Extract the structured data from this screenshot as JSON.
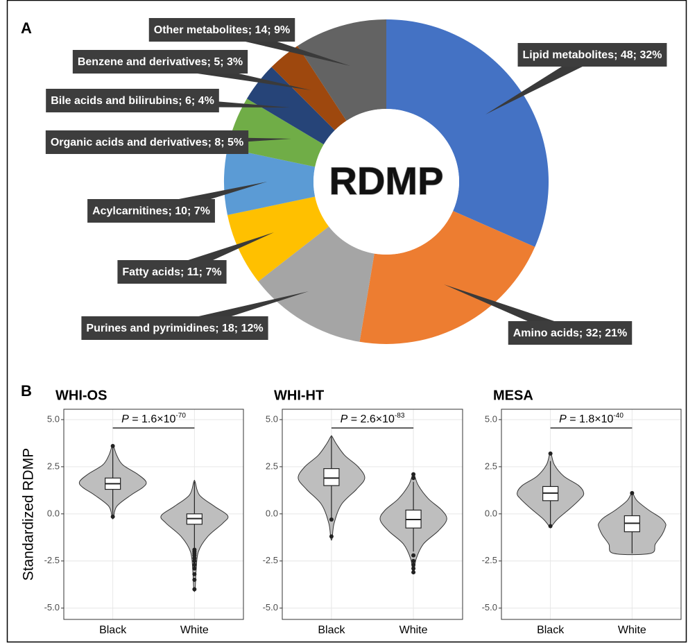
{
  "chart_data": [
    {
      "type": "donut",
      "panel": "A",
      "center_label": "RDMP",
      "categories": [
        "Lipid metabolites; 48; 32%",
        "Amino acids; 32; 21%",
        "Purines and pyrimidines; 18; 12%",
        "Fatty acids; 11; 7%",
        "Acylcarnitines; 10; 7%",
        "Organic acids and derivatives; 8; 5%",
        "Bile acids and bilirubins; 6; 4%",
        "Benzene and derivatives; 5; 3%",
        "Other metabolites; 14; 9%"
      ],
      "values": [
        48,
        32,
        18,
        11,
        10,
        8,
        6,
        5,
        14
      ],
      "colors": [
        "#4472c4",
        "#ed7d31",
        "#a5a5a5",
        "#ffc000",
        "#5b9bd5",
        "#70ad47",
        "#264478",
        "#9e480e",
        "#636363"
      ]
    },
    {
      "type": "violin",
      "panel": "B",
      "title": "WHI-OS",
      "ylabel": "Standardized RDMP",
      "annotation": [
        "P",
        " = 1.6×10",
        "-70"
      ],
      "categories": [
        "Black",
        "White"
      ],
      "color": "#bebebe",
      "ylim": [
        -5.6,
        5.55
      ],
      "yticks": [
        {
          "value": -5,
          "label": "-5.0"
        },
        {
          "value": -2.5,
          "label": "-2.5"
        },
        {
          "value": 0,
          "label": "0.0"
        },
        {
          "value": 2.5,
          "label": "2.5"
        },
        {
          "value": 5,
          "label": "5.0"
        }
      ],
      "grid": true,
      "groups": [
        {
          "box": [
            -0.1,
            1.3,
            1.6,
            1.9,
            3.5
          ],
          "outliers": [
            3.6,
            -0.15
          ],
          "density_y": [
            -0.2,
            0.4,
            1.0,
            1.4,
            1.7,
            2.1,
            2.6,
            3.1,
            3.6
          ],
          "density_width": [
            0.02,
            0.12,
            0.55,
            0.9,
            1,
            0.75,
            0.3,
            0.12,
            0.02
          ]
        },
        {
          "box": [
            -1.8,
            -0.55,
            -0.25,
            0.0,
            1.7
          ],
          "outliers": [
            -1.9,
            -2.0,
            -2.1,
            -2.2,
            -2.35,
            -2.5,
            -2.7,
            -2.9,
            -3.2,
            -3.5,
            -4.0
          ],
          "density_y": [
            -4.0,
            -3.0,
            -2.0,
            -1.2,
            -0.5,
            -0.1,
            0.4,
            1.0,
            1.7
          ],
          "density_width": [
            0.02,
            0.05,
            0.12,
            0.4,
            0.85,
            1,
            0.6,
            0.15,
            0.02
          ]
        }
      ]
    },
    {
      "type": "violin",
      "title": "WHI-HT",
      "annotation": [
        "P",
        " = 2.6×10",
        "-83"
      ],
      "categories": [
        "Black",
        "White"
      ],
      "color": "#bebebe",
      "ylim": [
        -5.6,
        5.55
      ],
      "yticks": [
        {
          "value": -5,
          "label": "-5.0"
        },
        {
          "value": -2.5,
          "label": "-2.5"
        },
        {
          "value": 0,
          "label": "0.0"
        },
        {
          "value": 2.5,
          "label": "2.5"
        },
        {
          "value": 5,
          "label": "5.0"
        }
      ],
      "grid": true,
      "groups": [
        {
          "box": [
            -0.2,
            1.5,
            1.9,
            2.4,
            4.1
          ],
          "outliers": [
            -0.3,
            -1.2
          ],
          "density_y": [
            -1.3,
            -0.5,
            0.5,
            1.3,
            1.9,
            2.5,
            3.1,
            3.7,
            4.1
          ],
          "density_width": [
            0.02,
            0.08,
            0.3,
            0.75,
            1,
            0.8,
            0.4,
            0.15,
            0.02
          ]
        },
        {
          "box": [
            -2.0,
            -0.75,
            -0.3,
            0.2,
            1.7
          ],
          "outliers": [
            1.9,
            2.1,
            -2.2,
            -2.5,
            -2.7,
            -2.9,
            -3.1
          ],
          "density_y": [
            -3.1,
            -2.4,
            -1.6,
            -0.9,
            -0.3,
            0.2,
            0.8,
            1.5,
            2.1
          ],
          "density_width": [
            0.02,
            0.08,
            0.3,
            0.75,
            1,
            0.85,
            0.45,
            0.15,
            0.02
          ]
        }
      ]
    },
    {
      "type": "violin",
      "title": "MESA",
      "annotation": [
        "P",
        " = 1.8×10",
        "-40"
      ],
      "categories": [
        "Black",
        "White"
      ],
      "color": "#bebebe",
      "ylim": [
        -5.6,
        5.55
      ],
      "yticks": [
        {
          "value": -5,
          "label": "-5.0"
        },
        {
          "value": -2.5,
          "label": "-2.5"
        },
        {
          "value": 0,
          "label": "0.0"
        },
        {
          "value": 2.5,
          "label": "2.5"
        },
        {
          "value": 5,
          "label": "5.0"
        }
      ],
      "grid": true,
      "groups": [
        {
          "box": [
            -0.6,
            0.7,
            1.1,
            1.45,
            2.8
          ],
          "outliers": [
            3.2,
            -0.65
          ],
          "density_y": [
            -0.7,
            -0.3,
            0.3,
            0.8,
            1.1,
            1.5,
            2.0,
            2.6,
            3.2
          ],
          "density_width": [
            0.02,
            0.2,
            0.6,
            0.9,
            1,
            0.85,
            0.4,
            0.12,
            0.02
          ]
        },
        {
          "box": [
            -2.1,
            -0.95,
            -0.5,
            -0.1,
            1.1
          ],
          "outliers": [
            1.1
          ],
          "density_y": [
            -2.1,
            -1.6,
            -1.1,
            -0.7,
            -0.5,
            -0.2,
            0.2,
            0.7,
            1.1
          ],
          "density_width": [
            0.55,
            0.7,
            0.9,
            1,
            1,
            0.85,
            0.5,
            0.15,
            0.02
          ]
        }
      ]
    }
  ]
}
